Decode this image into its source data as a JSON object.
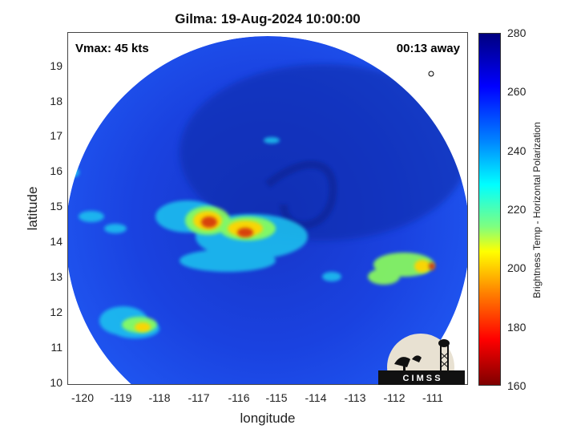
{
  "title": "Gilma: 19-Aug-2024 10:00:00",
  "overlay": {
    "vmax": "Vmax: 45 kts",
    "time_away": "00:13 away"
  },
  "axes": {
    "xlabel": "longitude",
    "ylabel": "latitude",
    "xticks": [
      "-120",
      "-119",
      "-118",
      "-117",
      "-116",
      "-115",
      "-114",
      "-113",
      "-112",
      "-111"
    ],
    "yticks": [
      "10",
      "11",
      "12",
      "13",
      "14",
      "15",
      "16",
      "17",
      "18",
      "19"
    ],
    "xlim": [
      -120.3,
      -110.3
    ],
    "ylim": [
      9.95,
      19.95
    ]
  },
  "colorbar": {
    "label": "Brightness Temp - Horizontal Polarization",
    "ticks": [
      "280",
      "260",
      "240",
      "220",
      "200",
      "180",
      "160"
    ],
    "range": [
      160,
      280
    ],
    "colormap": "jet"
  },
  "logo": {
    "text": "C I M S S"
  },
  "colors": {
    "background_swath": "#1a3fd6",
    "cold_core": "#c0300a",
    "warm_edge": "#0a1a8f"
  }
}
